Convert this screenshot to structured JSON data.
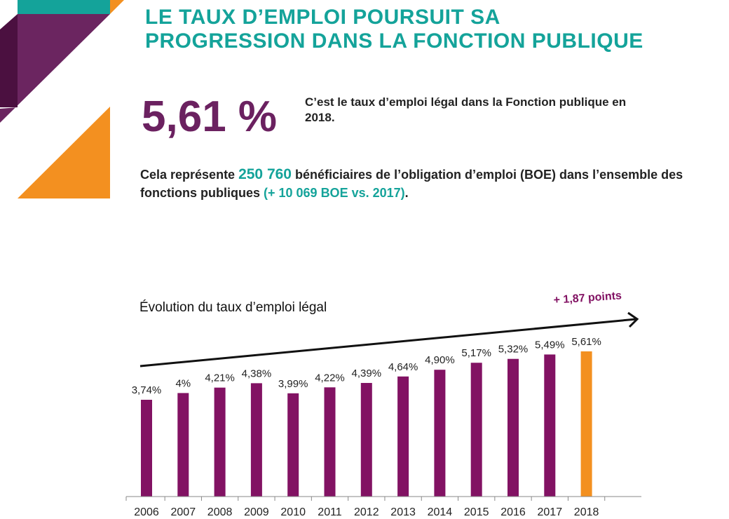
{
  "header": {
    "title_line1": "LE TAUX D’EMPLOI POURSUIT SA",
    "title_line2": "PROGRESSION DANS LA FONCTION PUBLIQUE"
  },
  "kpi": {
    "value": "5,61 %",
    "description": "C’est le taux d’emploi légal dans la Fonction publique en 2018."
  },
  "summary": {
    "prefix": "Cela représente ",
    "count": "250 760",
    "middle": " bénéficiaires de l’obligation d’emploi (BOE) dans l’ensemble des fonctions publiques ",
    "delta": "(+ 10 069 BOE vs. 2017)",
    "suffix": "."
  },
  "colors": {
    "teal": "#14a39a",
    "purple": "#821263",
    "orange": "#f39020",
    "dark_purple": "#6b2160"
  },
  "chart_data": {
    "type": "bar",
    "title": "Évolution du taux d’emploi légal",
    "annotation": "+ 1,87 points",
    "categories": [
      "2006",
      "2007",
      "2008",
      "2009",
      "2010",
      "2011",
      "2012",
      "2013",
      "2014",
      "2015",
      "2016",
      "2017",
      "2018"
    ],
    "values": [
      3.74,
      4,
      4.21,
      4.38,
      3.99,
      4.22,
      4.39,
      4.64,
      4.9,
      5.17,
      5.32,
      5.49,
      5.61
    ],
    "labels": [
      "3,74%",
      "4%",
      "4,21%",
      "4,38%",
      "3,99%",
      "4,22%",
      "4,39%",
      "4,64%",
      "4,90%",
      "5,17%",
      "5,32%",
      "5,49%",
      "5,61%"
    ],
    "highlight": "2018",
    "ylim": [
      0,
      5.61
    ],
    "grid": false
  }
}
